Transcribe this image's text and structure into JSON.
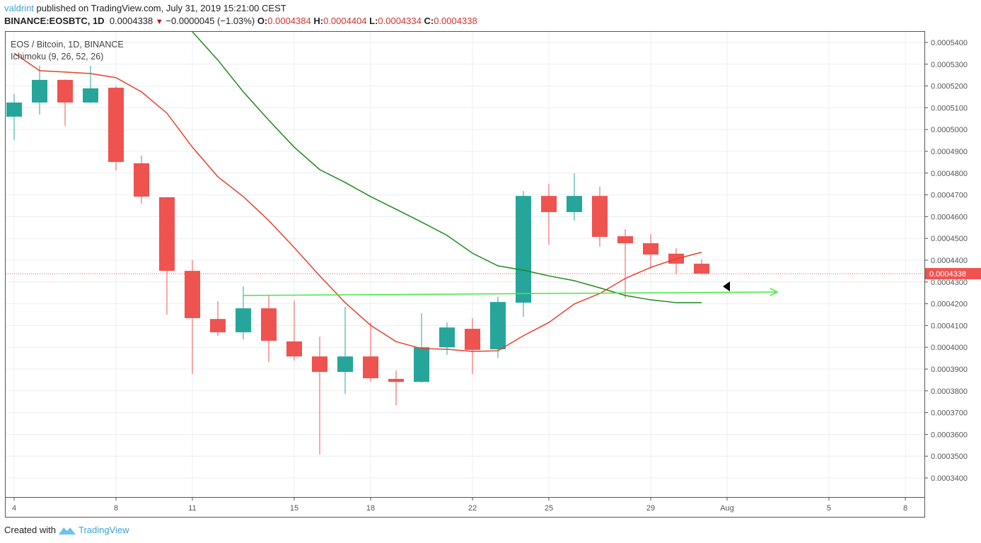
{
  "header": {
    "author": "valdrint",
    "published_text": " published on TradingView.com, July 31, 2019 15:21:00 CEST",
    "symbol": "BINANCE:EOSBTC, 1D",
    "last": "0.0004338",
    "change": "−0.0000045 (−1.03%)",
    "o_label": "O:",
    "o": "0.0004384",
    "h_label": "H:",
    "h": "0.0004404",
    "l_label": "L:",
    "l": "0.0004334",
    "c_label": "C:",
    "c": "0.0004338",
    "down_icon": "triangle-down-icon"
  },
  "footer": {
    "created_with": "Created with",
    "brand": "TradingView"
  },
  "colors": {
    "up": "#26a69a",
    "down": "#ef5350",
    "conversion": "#e8412b",
    "base": "#1e8a1e",
    "annotation": "#44e844",
    "grid": "#e8eef4"
  },
  "chart_data": {
    "type": "candlestick",
    "title": "EOS / Bitcoin, 1D, BINANCE",
    "indicator": "Ichimoku (9, 26, 52, 26)",
    "x_ticks": [
      {
        "label": "4",
        "day": 0
      },
      {
        "label": "8",
        "day": 4
      },
      {
        "label": "11",
        "day": 7
      },
      {
        "label": "15",
        "day": 11
      },
      {
        "label": "18",
        "day": 14
      },
      {
        "label": "22",
        "day": 18
      },
      {
        "label": "25",
        "day": 21
      },
      {
        "label": "29",
        "day": 25
      },
      {
        "label": "Aug",
        "day": 28
      },
      {
        "label": "5",
        "day": 32
      },
      {
        "label": "8",
        "day": 35
      }
    ],
    "y_ticks": [
      "0.0005400",
      "0.0005300",
      "0.0005200",
      "0.0005100",
      "0.0005000",
      "0.0004900",
      "0.0004800",
      "0.0004700",
      "0.0004600",
      "0.0004500",
      "0.0004400",
      "0.0004300",
      "0.0004200",
      "0.0004100",
      "0.0004000",
      "0.0003900",
      "0.0003800",
      "0.0003700",
      "0.0003600",
      "0.0003500",
      "0.0003400"
    ],
    "ylim": [
      0.000333,
      0.0005455
    ],
    "grid": true,
    "current_price_label": "0.0004338",
    "candles": [
      {
        "date": "Jul 4",
        "o": 0.0005059,
        "h": 0.0005163,
        "l": 0.0004952,
        "c": 0.0005124
      },
      {
        "date": "Jul 5",
        "o": 0.0005124,
        "h": 0.0005293,
        "l": 0.0005069,
        "c": 0.0005228
      },
      {
        "date": "Jul 6",
        "o": 0.0005228,
        "h": 0.000523,
        "l": 0.0005017,
        "c": 0.0005124
      },
      {
        "date": "Jul 7",
        "o": 0.0005124,
        "h": 0.0005293,
        "l": 0.0005121,
        "c": 0.0005189
      },
      {
        "date": "Jul 8",
        "o": 0.0005192,
        "h": 0.00052,
        "l": 0.0004812,
        "c": 0.0004851
      },
      {
        "date": "Jul 9",
        "o": 0.0004845,
        "h": 0.000488,
        "l": 0.000466,
        "c": 0.0004692
      },
      {
        "date": "Jul 10",
        "o": 0.0004689,
        "h": 0.000469,
        "l": 0.000415,
        "c": 0.0004351
      },
      {
        "date": "Jul 11",
        "o": 0.0004351,
        "h": 0.00044,
        "l": 0.0003877,
        "c": 0.0004134
      },
      {
        "date": "Jul 12",
        "o": 0.000413,
        "h": 0.0004212,
        "l": 0.0004053,
        "c": 0.0004069
      },
      {
        "date": "Jul 13",
        "o": 0.0004069,
        "h": 0.000428,
        "l": 0.0004036,
        "c": 0.0004179
      },
      {
        "date": "Jul 14",
        "o": 0.0004179,
        "h": 0.0004237,
        "l": 0.0003932,
        "c": 0.000403
      },
      {
        "date": "Jul 15",
        "o": 0.0004027,
        "h": 0.0004215,
        "l": 0.0003939,
        "c": 0.0003958
      },
      {
        "date": "Jul 16",
        "o": 0.0003958,
        "h": 0.0004049,
        "l": 0.0003507,
        "c": 0.0003887
      },
      {
        "date": "Jul 17",
        "o": 0.0003887,
        "h": 0.0004186,
        "l": 0.0003786,
        "c": 0.0003958
      },
      {
        "date": "Jul 18",
        "o": 0.0003958,
        "h": 0.0004114,
        "l": 0.0003841,
        "c": 0.0003858
      },
      {
        "date": "Jul 19",
        "o": 0.0003855,
        "h": 0.0003893,
        "l": 0.0003734,
        "c": 0.0003841
      },
      {
        "date": "Jul 20",
        "o": 0.0003841,
        "h": 0.0004156,
        "l": 0.0003838,
        "c": 0.0004
      },
      {
        "date": "Jul 21",
        "o": 0.0004,
        "h": 0.0004114,
        "l": 0.0003965,
        "c": 0.0004091
      },
      {
        "date": "Jul 22",
        "o": 0.0004085,
        "h": 0.0004134,
        "l": 0.0003877,
        "c": 0.0003988
      },
      {
        "date": "Jul 23",
        "o": 0.0003991,
        "h": 0.0004231,
        "l": 0.0003952,
        "c": 0.0004208
      },
      {
        "date": "Jul 24",
        "o": 0.0004205,
        "h": 0.0004718,
        "l": 0.000414,
        "c": 0.0004695
      },
      {
        "date": "Jul 25",
        "o": 0.0004695,
        "h": 0.0004751,
        "l": 0.0004471,
        "c": 0.0004621
      },
      {
        "date": "Jul 26",
        "o": 0.0004621,
        "h": 0.0004799,
        "l": 0.0004582,
        "c": 0.0004695
      },
      {
        "date": "Jul 27",
        "o": 0.0004695,
        "h": 0.0004738,
        "l": 0.0004462,
        "c": 0.0004507
      },
      {
        "date": "Jul 28",
        "o": 0.000451,
        "h": 0.0004543,
        "l": 0.0004225,
        "c": 0.0004478
      },
      {
        "date": "Jul 29",
        "o": 0.0004478,
        "h": 0.000452,
        "l": 0.0004361,
        "c": 0.0004426
      },
      {
        "date": "Jul 30",
        "o": 0.000443,
        "h": 0.0004455,
        "l": 0.0004335,
        "c": 0.0004384
      },
      {
        "date": "Jul 31",
        "o": 0.0004384,
        "h": 0.0004404,
        "l": 0.0004334,
        "c": 0.0004338
      }
    ],
    "conversion_line": [
      0.0005351,
      0.000527,
      0.0005264,
      0.0005257,
      0.0005238,
      0.0005173,
      0.0005075,
      0.0004919,
      0.0004783,
      0.0004692,
      0.0004582,
      0.0004458,
      0.0004328,
      0.0004205,
      0.0004101,
      0.0004026,
      0.0003994,
      0.0003991,
      0.0003981,
      0.0003984,
      0.0004053,
      0.0004114,
      0.0004199,
      0.0004247,
      0.0004316,
      0.0004367,
      0.0004406,
      0.0004436
    ],
    "base_line": [
      null,
      null,
      null,
      null,
      null,
      null,
      null,
      0.0005449,
      0.0005319,
      0.0005173,
      0.0005043,
      0.0004919,
      0.0004816,
      0.0004757,
      0.0004692,
      0.0004634,
      0.0004575,
      0.0004514,
      0.0004432,
      0.0004374,
      0.0004354,
      0.0004328,
      0.0004306,
      0.0004273,
      0.0004238,
      0.0004218,
      0.0004205,
      0.0004205
    ],
    "annotation_arrow": {
      "from": {
        "day": 9,
        "price": 0.0004238
      },
      "to": {
        "day": 29,
        "price": 0.0004254
      }
    },
    "marker": {
      "day": 28,
      "price": 0.0004286,
      "shape": "triangle-left"
    }
  }
}
